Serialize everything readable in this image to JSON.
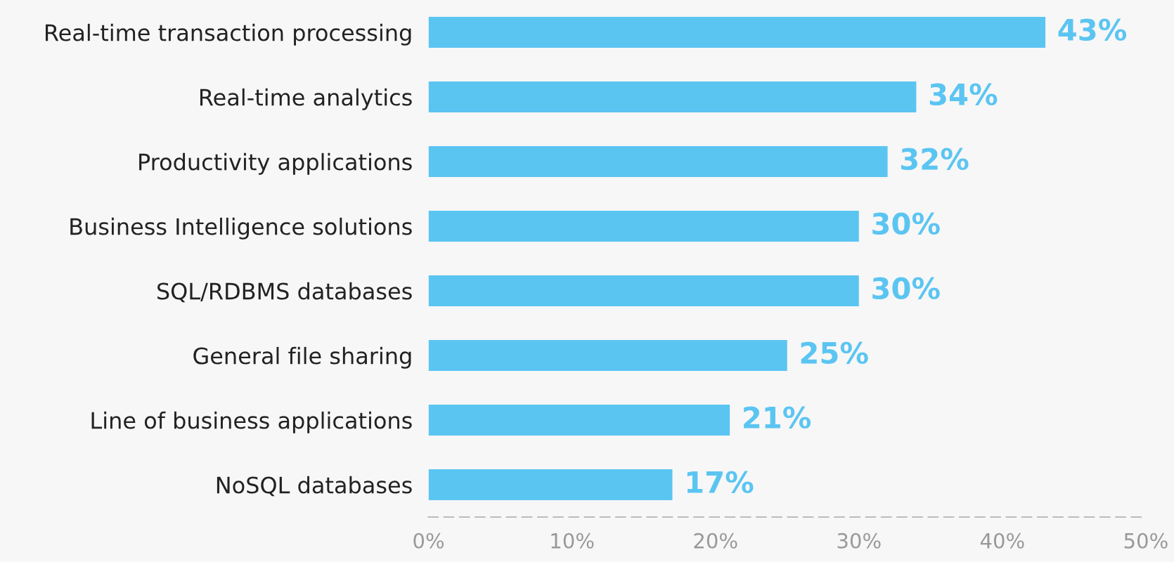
{
  "chart_data": {
    "type": "bar",
    "orientation": "horizontal",
    "categories": [
      "Real-time transaction processing",
      "Real-time analytics",
      "Productivity applications",
      "Business Intelligence solutions",
      "SQL/RDBMS databases",
      "General file sharing",
      "Line of business applications",
      "NoSQL databases"
    ],
    "values": [
      43,
      34,
      32,
      30,
      30,
      25,
      21,
      17
    ],
    "value_labels": [
      "43%",
      "34%",
      "32%",
      "30%",
      "30%",
      "25%",
      "21%",
      "17%"
    ],
    "color": "#5bc5f2",
    "xlim": [
      0,
      50
    ],
    "xticks": [
      {
        "value": 0,
        "label": "0%"
      },
      {
        "value": 10,
        "label": "10%"
      },
      {
        "value": 20,
        "label": "20%"
      },
      {
        "value": 30,
        "label": "30%"
      },
      {
        "value": 40,
        "label": "40%"
      },
      {
        "value": 50,
        "label": "50%"
      }
    ],
    "grid": false,
    "legend": false
  }
}
